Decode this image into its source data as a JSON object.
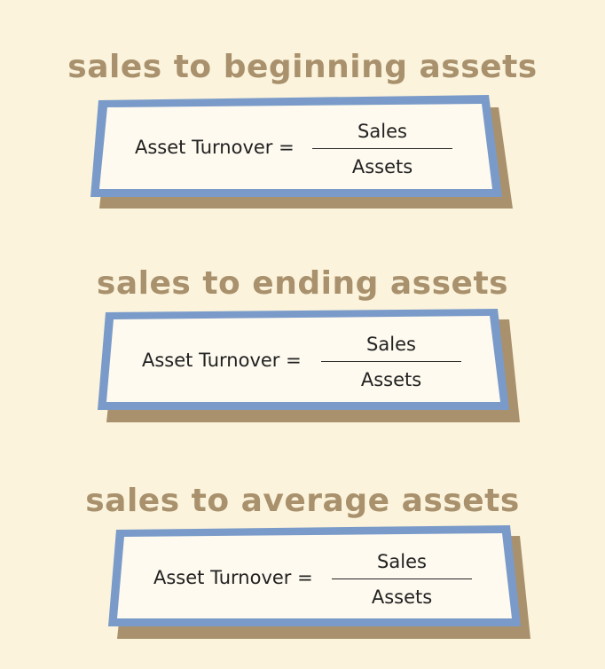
{
  "colors": {
    "background": "#fbf3dc",
    "heading": "#a8916c",
    "box_border": "#7a9bc9",
    "box_fill": "#fefaef",
    "shadow": "#a8916c",
    "text": "#222222"
  },
  "sections": [
    {
      "heading": "sales to beginning assets",
      "lhs": "Asset Turnover =",
      "numerator": "Sales",
      "denominator": "Assets"
    },
    {
      "heading": "sales to ending assets",
      "lhs": "Asset Turnover =",
      "numerator": "Sales",
      "denominator": "Assets"
    },
    {
      "heading": "sales to average assets",
      "lhs": "Asset Turnover =",
      "numerator": "Sales",
      "denominator": "Assets"
    }
  ]
}
